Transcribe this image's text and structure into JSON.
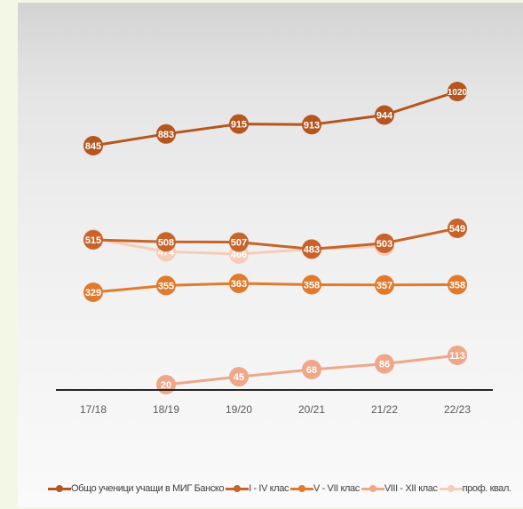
{
  "chart_data": {
    "type": "line",
    "categories": [
      "17/18",
      "18/19",
      "19/20",
      "20/21",
      "21/22",
      "22/23"
    ],
    "series": [
      {
        "name": "Общо ученици учащи в МИГ Банско",
        "values": [
          845,
          883,
          915,
          913,
          944,
          1020
        ],
        "color": "#b5561e"
      },
      {
        "name": "I - IV клас",
        "values": [
          515,
          508,
          507,
          483,
          503,
          549
        ],
        "color": "#c8642a"
      },
      {
        "name": "V - VII клас",
        "values": [
          329,
          355,
          363,
          358,
          357,
          358
        ],
        "color": "#e07b2e"
      },
      {
        "name": "VIII - XII клас",
        "values": [
          null,
          20,
          45,
          68,
          86,
          113
        ],
        "color": "#eea789"
      },
      {
        "name": "проф. квал.",
        "values": [
          519,
          474,
          466,
          483,
          493,
          null
        ],
        "color": "#f6cdb9"
      }
    ],
    "grid": false,
    "legend": "bottom"
  }
}
